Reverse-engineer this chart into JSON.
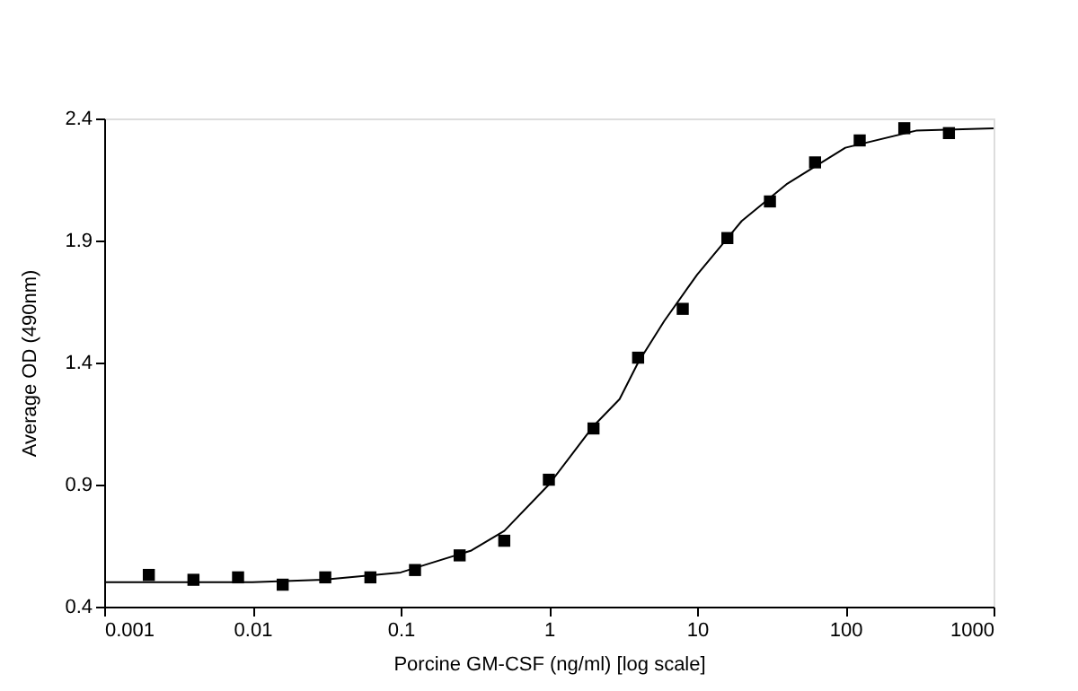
{
  "chart_data": {
    "type": "scatter",
    "xlabel": "Porcine GM-CSF (ng/ml) [log scale]",
    "ylabel": "Average OD (490nm)",
    "log": "x",
    "grid": false,
    "xlim": [
      0.001,
      1000
    ],
    "xticks": [
      0.001,
      0.01,
      0.1,
      1,
      10,
      100,
      1000
    ],
    "ylim": [
      0.4,
      2.4
    ],
    "yticks": [
      0.4,
      0.9,
      1.4,
      1.9,
      2.4
    ],
    "series": [
      {
        "marker": "square",
        "color": "#000000",
        "x": [
          0.002,
          0.004,
          0.008,
          0.016,
          0.031,
          0.0625,
          0.125,
          0.25,
          0.5,
          1,
          2,
          4,
          8,
          16,
          31,
          62.5,
          125,
          250,
          500
        ],
        "values": [
          0.53,
          0.51,
          0.52,
          0.49,
          0.52,
          0.52,
          0.55,
          0.61,
          0.67,
          0.92,
          1.13,
          1.42,
          1.62,
          1.91,
          2.06,
          2.22,
          2.31,
          2.36,
          2.34
        ]
      },
      {
        "type": "line",
        "line_style": "solid",
        "color": "#000000",
        "x": [
          0.001,
          0.003,
          0.01,
          0.03,
          0.1,
          0.3,
          0.5,
          1,
          2,
          3,
          4,
          6,
          10,
          20,
          40,
          100,
          300,
          1000
        ],
        "values": [
          0.5,
          0.5,
          0.5,
          0.51,
          0.54,
          0.63,
          0.71,
          0.9,
          1.14,
          1.25,
          1.4,
          1.57,
          1.76,
          1.98,
          2.13,
          2.28,
          2.35,
          2.36
        ]
      }
    ]
  }
}
